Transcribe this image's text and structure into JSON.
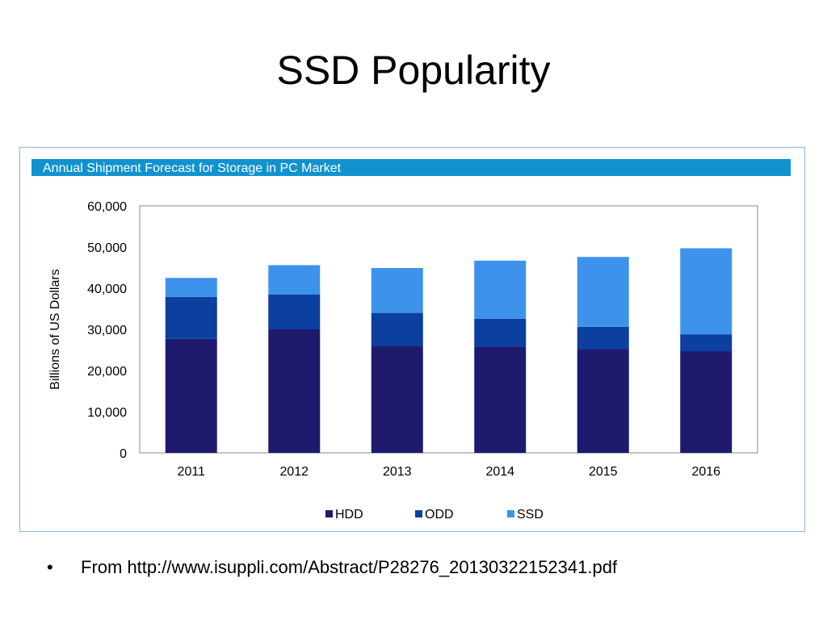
{
  "slide": {
    "title": "SSD Popularity",
    "bullet_symbol": "•",
    "bullet_text": "From http://www.isuppli.com/Abstract/P28276_20130322152341.pdf"
  },
  "chart_data": {
    "type": "bar",
    "stacked": true,
    "title": "Annual Shipment Forecast for Storage in PC Market",
    "xlabel": "",
    "ylabel": "Billions of US Dollars",
    "categories": [
      "2011",
      "2012",
      "2013",
      "2014",
      "2015",
      "2016"
    ],
    "ylim": [
      0,
      60000
    ],
    "yticks": [
      0,
      10000,
      20000,
      30000,
      40000,
      50000,
      60000
    ],
    "ytick_labels": [
      "0",
      "10,000",
      "20,000",
      "30,000",
      "40,000",
      "50,000",
      "60,000"
    ],
    "grid": false,
    "legend_position": "bottom",
    "series": [
      {
        "name": "HDD",
        "color": "#1e1a6e",
        "values": [
          27700,
          30000,
          26000,
          25800,
          25200,
          24700
        ]
      },
      {
        "name": "ODD",
        "color": "#0b3fa0",
        "values": [
          10200,
          8500,
          8000,
          6800,
          5400,
          4100
        ]
      },
      {
        "name": "SSD",
        "color": "#3d93ec",
        "values": [
          4600,
          7100,
          10900,
          14100,
          17000,
          20900
        ]
      }
    ],
    "title_bar_color": "#1192cf"
  }
}
